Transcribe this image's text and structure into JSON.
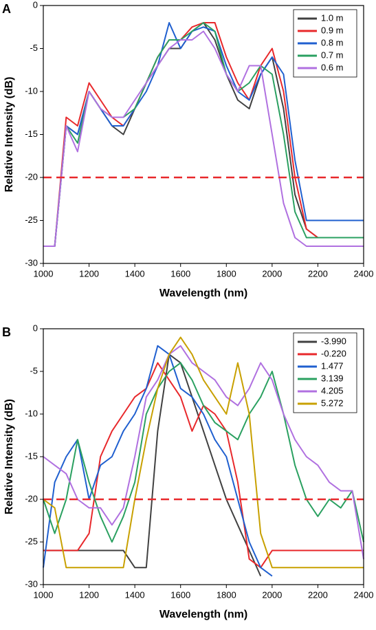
{
  "chart_data": [
    {
      "type": "line",
      "panel_label": "A",
      "x_label": "Wavelength (nm)",
      "y_label": "Relative Intensity (dB)",
      "x": [
        1000,
        1050,
        1100,
        1150,
        1200,
        1250,
        1300,
        1350,
        1400,
        1450,
        1500,
        1550,
        1600,
        1650,
        1700,
        1750,
        1800,
        1850,
        1900,
        1950,
        2000,
        2050,
        2100,
        2150,
        2200,
        2250,
        2300,
        2350,
        2400
      ],
      "xlim": [
        1000,
        2400
      ],
      "xticks": [
        1000,
        1200,
        1400,
        1600,
        1800,
        2000,
        2200,
        2400
      ],
      "ylim": [
        -30,
        0
      ],
      "yticks": [
        -30,
        -25,
        -20,
        -15,
        -10,
        -5,
        0
      ],
      "hline": {
        "value": -20,
        "color": "#e8282b",
        "style": "dashed"
      },
      "legend": "upper right",
      "series": [
        {
          "name": "1.0 m",
          "color": "#404040",
          "values": [
            -28,
            -28,
            -14,
            -15,
            -10,
            -12,
            -14,
            -15,
            -12,
            -9,
            -7,
            -5,
            -5,
            -3,
            -2,
            -4,
            -8,
            -11,
            -12,
            -8,
            -6,
            -12,
            -22,
            -26,
            -27,
            -27,
            -27,
            -27,
            -27
          ]
        },
        {
          "name": "0.9 m",
          "color": "#e8282b",
          "values": [
            -28,
            -28,
            -13,
            -14,
            -9,
            -11,
            -13,
            -14,
            -12,
            -9,
            -6,
            -4,
            -4,
            -2.5,
            -2,
            -2,
            -6,
            -9,
            -11,
            -7,
            -5,
            -10,
            -20,
            -26,
            -27,
            -27,
            -27,
            -27,
            -27
          ]
        },
        {
          "name": "0.8 m",
          "color": "#1f5fcf",
          "values": [
            -28,
            -28,
            -14,
            -15,
            -10,
            -12,
            -14,
            -14,
            -12,
            -10,
            -7,
            -2,
            -5,
            -3,
            -2.5,
            -3,
            -7,
            -10,
            -11,
            -8,
            -6,
            -8,
            -18,
            -25,
            -25,
            -25,
            -25,
            -25,
            -25
          ]
        },
        {
          "name": "0.7 m",
          "color": "#2aa060",
          "values": [
            -28,
            -28,
            -14,
            -16,
            -10,
            -12,
            -13,
            -13,
            -12,
            -9,
            -6,
            -4,
            -4,
            -3,
            -2,
            -3,
            -8,
            -10,
            -9,
            -7,
            -8,
            -15,
            -24,
            -27,
            -27,
            -27,
            -27,
            -27,
            -27
          ]
        },
        {
          "name": "0.6 m",
          "color": "#b070e0",
          "values": [
            -28,
            -28,
            -14,
            -17,
            -10,
            -12,
            -13,
            -13,
            -11,
            -9,
            -7,
            -5,
            -4,
            -4,
            -3,
            -5,
            -8,
            -10,
            -7,
            -7,
            -15,
            -23,
            -27,
            -28,
            -28,
            -28,
            -28,
            -28,
            -28
          ]
        }
      ]
    },
    {
      "type": "line",
      "panel_label": "B",
      "x_label": "Wavelength (nm)",
      "y_label": "Relative Intensity (dB)",
      "x": [
        1000,
        1050,
        1100,
        1150,
        1200,
        1250,
        1300,
        1350,
        1400,
        1450,
        1500,
        1550,
        1600,
        1650,
        1700,
        1750,
        1800,
        1850,
        1900,
        1950,
        2000,
        2050,
        2100,
        2150,
        2200,
        2250,
        2300,
        2350,
        2400
      ],
      "xlim": [
        1000,
        2400
      ],
      "xticks": [
        1000,
        1200,
        1400,
        1600,
        1800,
        2000,
        2200,
        2400
      ],
      "ylim": [
        -30,
        0
      ],
      "yticks": [
        -30,
        -25,
        -20,
        -15,
        -10,
        -5,
        0
      ],
      "hline": {
        "value": -20,
        "color": "#e8282b",
        "style": "dashed"
      },
      "legend": "upper right",
      "series": [
        {
          "name": "-3.990",
          "color": "#404040",
          "values": [
            -26,
            -26,
            -26,
            -26,
            -26,
            -26,
            -26,
            -26,
            -28,
            -28,
            -12,
            -3,
            -4,
            -8,
            -12,
            -16,
            -20,
            -23,
            -26,
            -29,
            null,
            null,
            null,
            null,
            null,
            null,
            null,
            null,
            null
          ]
        },
        {
          "name": "-0.220",
          "color": "#e8282b",
          "values": [
            -26,
            -26,
            -26,
            -26,
            -24,
            -15,
            -12,
            -10,
            -8,
            -7,
            -4,
            -6,
            -8,
            -12,
            -9,
            -10,
            -12,
            -18,
            -27,
            -28,
            -26,
            -26,
            -26,
            -26,
            -26,
            -26,
            -26,
            -26,
            -26
          ]
        },
        {
          "name": "1.477",
          "color": "#1f5fcf",
          "values": [
            -28,
            -18,
            -15,
            -13,
            -20,
            -16,
            -15,
            -12,
            -10,
            -7,
            -2,
            -3,
            -7,
            -8,
            -10,
            -13,
            -15,
            -20,
            -25,
            -28,
            -29,
            null,
            null,
            null,
            null,
            null,
            null,
            null,
            null
          ]
        },
        {
          "name": "3.139",
          "color": "#2aa060",
          "values": [
            -20,
            -24,
            -20,
            -13,
            -18,
            -22,
            -25,
            -22,
            -18,
            -10,
            -7,
            -5,
            -4,
            -6,
            -9,
            -11,
            -12,
            -13,
            -10,
            -8,
            -5,
            -10,
            -16,
            -20,
            -22,
            -20,
            -21,
            -19,
            -25
          ]
        },
        {
          "name": "4.205",
          "color": "#b070e0",
          "values": [
            -15,
            -16,
            -17,
            -20,
            -21,
            -21,
            -23,
            -21,
            -15,
            -8,
            -6,
            -3,
            -2,
            -4,
            -5,
            -6,
            -8,
            -9,
            -7,
            -4,
            -6,
            -10,
            -13,
            -15,
            -16,
            -18,
            -19,
            -19,
            -27
          ]
        },
        {
          "name": "5.272",
          "color": "#c8a000",
          "values": [
            -20,
            -21,
            -28,
            -28,
            -28,
            -28,
            -28,
            -28,
            -20,
            -13,
            -7,
            -3,
            -1,
            -3,
            -6,
            -8,
            -10,
            -4,
            -10,
            -24,
            -28,
            -28,
            -28,
            -28,
            -28,
            -28,
            -28,
            -28,
            -28
          ]
        }
      ]
    }
  ]
}
